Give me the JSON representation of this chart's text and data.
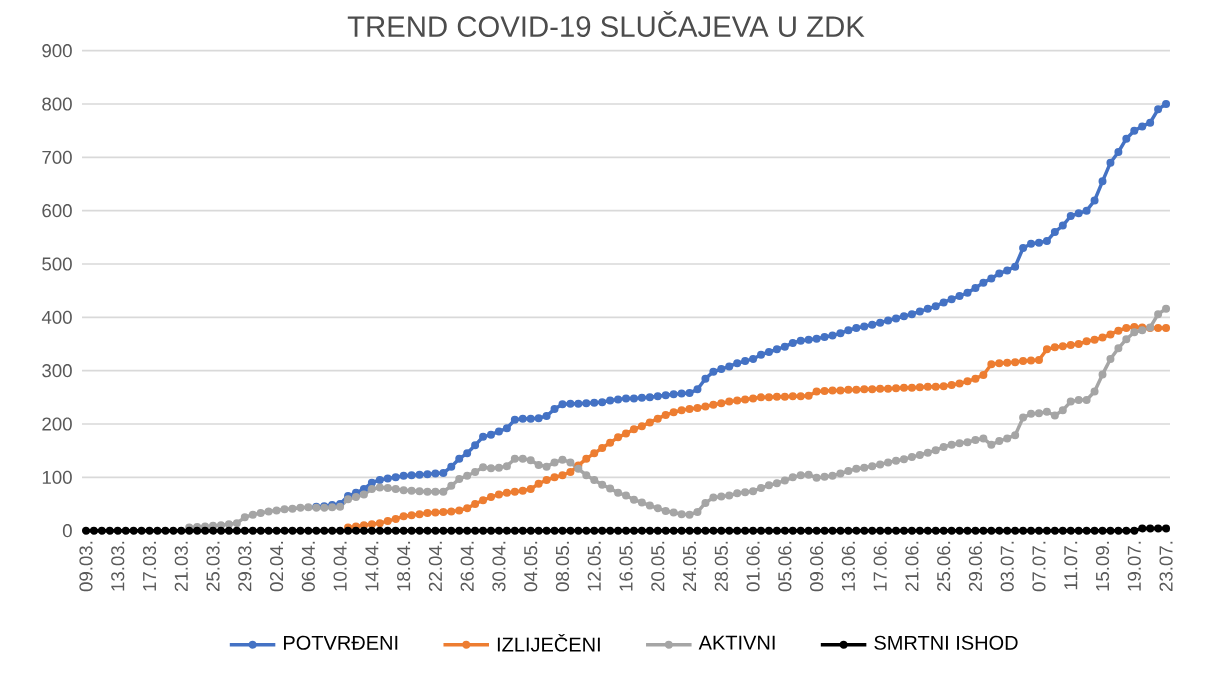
{
  "chart_data": {
    "type": "line",
    "title": "TREND COVID-19 SLUČAJEVA U ZDK",
    "categories": [
      "09.03.",
      null,
      null,
      null,
      "13.03.",
      null,
      null,
      null,
      "17.03.",
      null,
      null,
      null,
      "21.03.",
      null,
      null,
      null,
      "25.03.",
      null,
      null,
      null,
      "29.03.",
      null,
      null,
      null,
      "02.04.",
      null,
      null,
      null,
      "06.04.",
      null,
      null,
      null,
      "10.04.",
      null,
      null,
      null,
      "14.04.",
      null,
      null,
      null,
      "18.04.",
      null,
      null,
      null,
      "22.04.",
      null,
      null,
      null,
      "26.04.",
      null,
      null,
      null,
      "30.04.",
      null,
      null,
      null,
      "04.05.",
      null,
      null,
      null,
      "08.05.",
      null,
      null,
      null,
      "12.05.",
      null,
      null,
      null,
      "16.05.",
      null,
      null,
      null,
      "20.05.",
      null,
      null,
      null,
      "24.05.",
      null,
      null,
      null,
      "28.05.",
      null,
      null,
      null,
      "01.06.",
      null,
      null,
      null,
      "05.06.",
      null,
      null,
      null,
      "09.06.",
      null,
      null,
      null,
      "13.06.",
      null,
      null,
      null,
      "17.06.",
      null,
      null,
      null,
      "21.06.",
      null,
      null,
      null,
      "25.06.",
      null,
      null,
      null,
      "29.06.",
      null,
      null,
      null,
      "03.07.",
      null,
      null,
      null,
      "07.07.",
      null,
      null,
      null,
      "11.07.",
      null,
      null,
      null,
      "15.09.",
      null,
      null,
      null,
      "19.07.",
      null,
      null,
      null,
      "23.07."
    ],
    "series": [
      {
        "name": "POTVRĐENI",
        "color": "#4472c4",
        "values": [
          null,
          null,
          null,
          null,
          null,
          null,
          null,
          null,
          null,
          null,
          null,
          null,
          null,
          null,
          null,
          null,
          null,
          null,
          null,
          null,
          null,
          null,
          null,
          null,
          null,
          null,
          null,
          null,
          null,
          45,
          46,
          48,
          50,
          65,
          71,
          78,
          90,
          95,
          98,
          100,
          103,
          104,
          105,
          106,
          107,
          108,
          120,
          135,
          145,
          160,
          176,
          180,
          186,
          192,
          208,
          210,
          210,
          211,
          215,
          228,
          237,
          238,
          238,
          239,
          240,
          241,
          244,
          246,
          248,
          248,
          249,
          250,
          252,
          254,
          256,
          257,
          258,
          265,
          285,
          298,
          303,
          308,
          314,
          318,
          322,
          330,
          335,
          340,
          345,
          352,
          356,
          358,
          360,
          363,
          366,
          370,
          376,
          380,
          383,
          386,
          390,
          394,
          398,
          402,
          406,
          411,
          416,
          421,
          428,
          434,
          440,
          446,
          455,
          465,
          473,
          482,
          488,
          495,
          530,
          538,
          540,
          543,
          560,
          572,
          590,
          595,
          600,
          619,
          655,
          690,
          710,
          735,
          750,
          758,
          765,
          790,
          800
        ]
      },
      {
        "name": "IZLIJEČENI",
        "color": "#ed7d31",
        "values": [
          null,
          null,
          null,
          null,
          null,
          null,
          null,
          null,
          null,
          null,
          null,
          null,
          null,
          null,
          null,
          null,
          null,
          null,
          null,
          null,
          null,
          null,
          null,
          null,
          null,
          null,
          null,
          null,
          null,
          null,
          null,
          null,
          null,
          6,
          8,
          10,
          12,
          14,
          18,
          22,
          27,
          29,
          31,
          33,
          34,
          35,
          36,
          38,
          42,
          50,
          57,
          63,
          68,
          71,
          73,
          75,
          78,
          88,
          95,
          100,
          104,
          110,
          122,
          135,
          145,
          155,
          165,
          175,
          182,
          190,
          196,
          203,
          210,
          217,
          222,
          226,
          228,
          230,
          233,
          236,
          239,
          242,
          244,
          246,
          248,
          250,
          250,
          251,
          251,
          252,
          252,
          253,
          261,
          262,
          263,
          263,
          264,
          264,
          265,
          265,
          266,
          266,
          267,
          268,
          268,
          269,
          270,
          270,
          271,
          273,
          276,
          280,
          285,
          292,
          312,
          314,
          315,
          316,
          318,
          319,
          320,
          340,
          344,
          346,
          348,
          350,
          355,
          358,
          362,
          368,
          375,
          380,
          382,
          381,
          380,
          380,
          380
        ]
      },
      {
        "name": "AKTIVNI",
        "color": "#a5a5a5",
        "values": [
          null,
          null,
          null,
          null,
          null,
          null,
          null,
          null,
          null,
          null,
          null,
          null,
          null,
          6,
          7,
          8,
          9,
          10,
          12,
          14,
          25,
          30,
          33,
          36,
          38,
          40,
          41,
          43,
          44,
          43,
          43,
          44,
          45,
          59,
          63,
          68,
          78,
          81,
          80,
          78,
          76,
          75,
          74,
          73,
          73,
          73,
          84,
          97,
          103,
          110,
          119,
          117,
          118,
          121,
          135,
          135,
          132,
          123,
          120,
          128,
          133,
          128,
          116,
          104,
          95,
          86,
          79,
          71,
          66,
          58,
          53,
          47,
          42,
          37,
          34,
          31,
          30,
          35,
          52,
          62,
          64,
          66,
          70,
          72,
          74,
          80,
          85,
          89,
          94,
          100,
          104,
          105,
          99,
          101,
          103,
          107,
          112,
          116,
          118,
          121,
          124,
          128,
          131,
          134,
          138,
          142,
          146,
          151,
          157,
          161,
          164,
          166,
          170,
          173,
          161,
          168,
          173,
          179,
          212,
          219,
          220,
          223,
          216,
          226,
          242,
          245,
          245,
          261,
          293,
          322,
          342,
          359,
          372,
          376,
          381,
          406,
          416
        ]
      },
      {
        "name": "SMRTNI ISHOD",
        "color": "#000000",
        "values": [
          0,
          0,
          0,
          0,
          0,
          0,
          0,
          0,
          0,
          0,
          0,
          0,
          0,
          0,
          0,
          0,
          0,
          0,
          0,
          0,
          0,
          0,
          0,
          0,
          0,
          0,
          0,
          0,
          0,
          0,
          0,
          0,
          0,
          0,
          0,
          0,
          0,
          0,
          0,
          0,
          0,
          0,
          0,
          0,
          0,
          0,
          0,
          0,
          0,
          0,
          0,
          0,
          0,
          0,
          0,
          0,
          0,
          0,
          0,
          0,
          0,
          0,
          0,
          0,
          0,
          0,
          0,
          0,
          0,
          0,
          0,
          0,
          0,
          0,
          0,
          0,
          0,
          0,
          0,
          0,
          0,
          0,
          0,
          0,
          0,
          0,
          0,
          0,
          0,
          0,
          0,
          0,
          0,
          0,
          0,
          0,
          0,
          0,
          0,
          0,
          0,
          0,
          0,
          0,
          0,
          0,
          0,
          0,
          0,
          0,
          0,
          0,
          0,
          0,
          0,
          0,
          0,
          0,
          0,
          0,
          0,
          0,
          0,
          0,
          0,
          0,
          0,
          0,
          0,
          0,
          0,
          0,
          0,
          4,
          4,
          4,
          4
        ]
      }
    ],
    "ylim": [
      0,
      900
    ],
    "yticks": [
      0,
      100,
      200,
      300,
      400,
      500,
      600,
      700,
      800,
      900
    ],
    "grid": "y",
    "legend": "bottom",
    "marker": "circle"
  }
}
